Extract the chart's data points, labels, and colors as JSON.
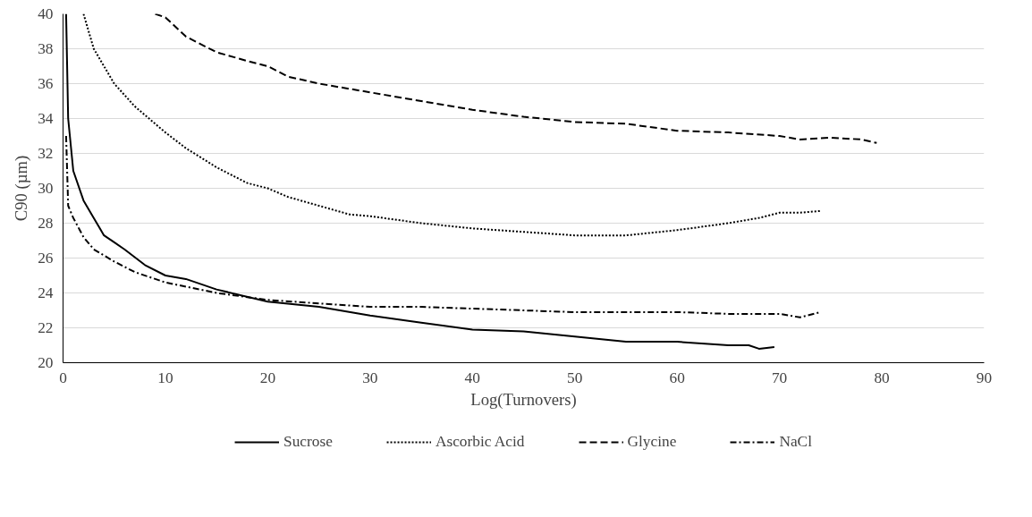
{
  "chart_data": {
    "type": "line",
    "xlabel": "Log(Turnovers)",
    "ylabel": "C90 (µm)",
    "xlim": [
      0,
      90
    ],
    "ylim": [
      20,
      40
    ],
    "xticks": [
      0,
      10,
      20,
      30,
      40,
      50,
      60,
      70,
      80,
      90
    ],
    "yticks": [
      20,
      22,
      24,
      26,
      28,
      30,
      32,
      34,
      36,
      38,
      40
    ],
    "grid": "y",
    "legend": "bottom",
    "marker": "none",
    "series": [
      {
        "name": "Sucrose",
        "color": "#000000",
        "line_style": "solid",
        "x": [
          0.3,
          0.5,
          1,
          2,
          3,
          4,
          5,
          6,
          8,
          10,
          12,
          15,
          20,
          25,
          30,
          35,
          40,
          45,
          50,
          55,
          60,
          65,
          67,
          68,
          69.5
        ],
        "values": [
          40,
          34,
          31,
          29.3,
          28.3,
          27.3,
          26.9,
          26.5,
          25.6,
          25.0,
          24.8,
          24.2,
          23.5,
          23.2,
          22.7,
          22.3,
          21.9,
          21.8,
          21.5,
          21.2,
          21.2,
          21.0,
          21.0,
          20.8,
          20.9
        ]
      },
      {
        "name": "Ascorbic Acid",
        "color": "#000000",
        "line_style": "dotted",
        "x": [
          2,
          3,
          5,
          7,
          10,
          12,
          15,
          18,
          20,
          22,
          25,
          28,
          30,
          35,
          40,
          45,
          50,
          55,
          60,
          65,
          68,
          70,
          72,
          74
        ],
        "values": [
          40,
          38,
          36,
          34.7,
          33.2,
          32.3,
          31.2,
          30.3,
          30,
          29.5,
          29,
          28.5,
          28.4,
          28,
          27.7,
          27.5,
          27.3,
          27.3,
          27.6,
          28.0,
          28.3,
          28.6,
          28.6,
          28.7
        ]
      },
      {
        "name": "Glycine",
        "color": "#000000",
        "line_style": "dashed",
        "x": [
          9,
          10,
          12,
          15,
          18,
          20,
          22,
          25,
          30,
          35,
          40,
          45,
          50,
          55,
          60,
          65,
          70,
          72,
          75,
          78,
          79.5
        ],
        "values": [
          40,
          39.8,
          38.7,
          37.8,
          37.3,
          37,
          36.4,
          36,
          35.5,
          35,
          34.5,
          34.1,
          33.8,
          33.7,
          33.3,
          33.2,
          33.0,
          32.8,
          32.9,
          32.8,
          32.6
        ]
      },
      {
        "name": "NaCl",
        "color": "#000000",
        "line_style": "dashdot",
        "x": [
          0.3,
          0.5,
          1,
          2,
          3,
          5,
          7,
          10,
          15,
          20,
          25,
          30,
          35,
          40,
          45,
          50,
          55,
          60,
          65,
          70,
          72,
          74
        ],
        "values": [
          33,
          29,
          28.3,
          27.2,
          26.5,
          25.8,
          25.2,
          24.6,
          24,
          23.6,
          23.4,
          23.2,
          23.2,
          23.1,
          23,
          22.9,
          22.9,
          22.9,
          22.8,
          22.8,
          22.6,
          22.9
        ]
      }
    ]
  }
}
